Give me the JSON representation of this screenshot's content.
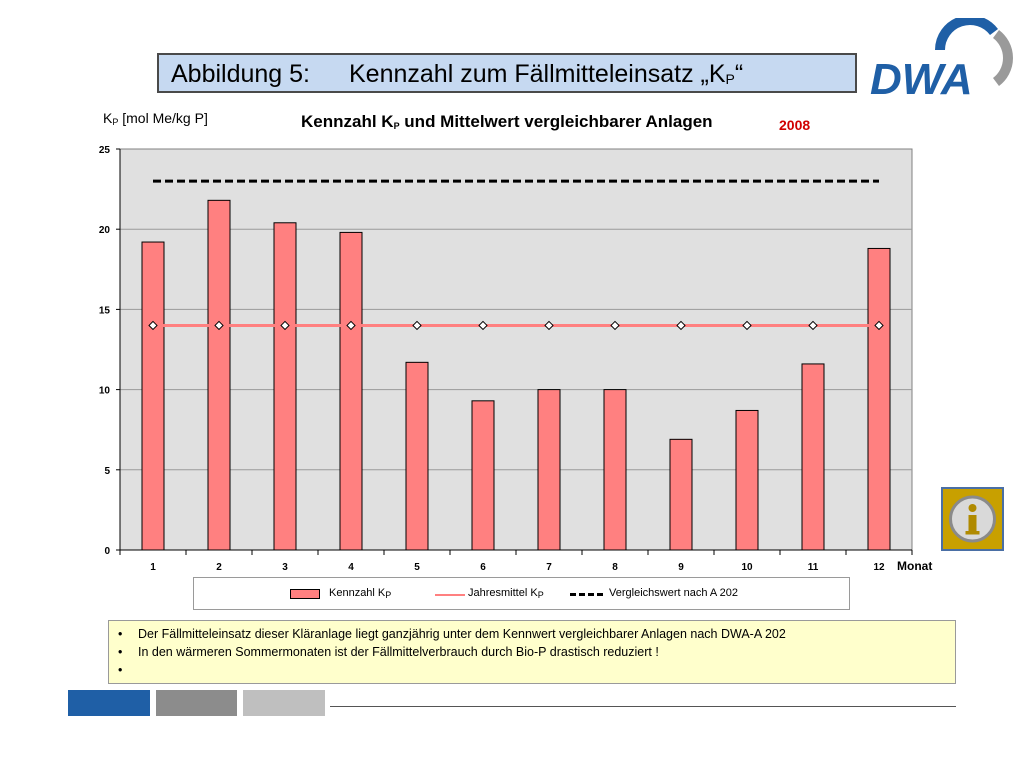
{
  "slide": {
    "title_label": "Abbildung 5:",
    "title_text": "Kennzahl zum Fällmitteleinsatz „K",
    "title_sub": "P",
    "title_end": "“",
    "logo_text": "DWA"
  },
  "chart_data": {
    "type": "bar",
    "title_pre": "Kennzahl K",
    "title_sub": "P",
    "title_post": " und Mittelwert vergleichbarer Anlagen",
    "year_label": "2008",
    "ylabel_pre": "K",
    "ylabel_sub": "P",
    "ylabel_post": " [mol Me/kg P]",
    "xlabel": "Monat",
    "categories": [
      "1",
      "2",
      "3",
      "4",
      "5",
      "6",
      "7",
      "8",
      "9",
      "10",
      "11",
      "12"
    ],
    "ylim": [
      0,
      25
    ],
    "yticks": [
      "0",
      "5",
      "10",
      "15",
      "20",
      "25"
    ],
    "grid": true,
    "legend_position": "bottom",
    "series": [
      {
        "name": "Kennzahl K",
        "name_sub": "P",
        "type": "bar",
        "color": "#ff8080",
        "values": [
          19.2,
          21.8,
          20.4,
          19.8,
          11.7,
          9.3,
          10.0,
          10.0,
          6.9,
          8.7,
          11.6,
          18.8
        ]
      },
      {
        "name": "Jahresmittel K",
        "name_sub": "P",
        "type": "line",
        "color": "#ff8080",
        "marker": "diamond",
        "values": [
          14.0,
          14.0,
          14.0,
          14.0,
          14.0,
          14.0,
          14.0,
          14.0,
          14.0,
          14.0,
          14.0,
          14.0
        ]
      },
      {
        "name": "Vergleichswert nach A 202",
        "type": "line",
        "color": "#000000",
        "style": "dashed",
        "values": [
          23.0,
          23.0,
          23.0,
          23.0,
          23.0,
          23.0,
          23.0,
          23.0,
          23.0,
          23.0,
          23.0,
          23.0
        ]
      }
    ]
  },
  "notes": {
    "bullet": "•",
    "items": [
      "Der Fällmitteleinsatz dieser Kläranlage liegt ganzjährig unter dem Kennwert vergleichbarer Anlagen nach DWA-A 202",
      "In den wärmeren Sommermonaten ist der Fällmittelverbrauch durch Bio-P drastisch reduziert !",
      ""
    ]
  },
  "colors": {
    "title_bg": "#c6d9f1",
    "plot_bg": "#e0e0e0",
    "notes_bg": "#ffffcc",
    "logo_blue": "#1f5fa6",
    "year_red": "#d00000"
  },
  "icons": {
    "info": "info-icon"
  }
}
